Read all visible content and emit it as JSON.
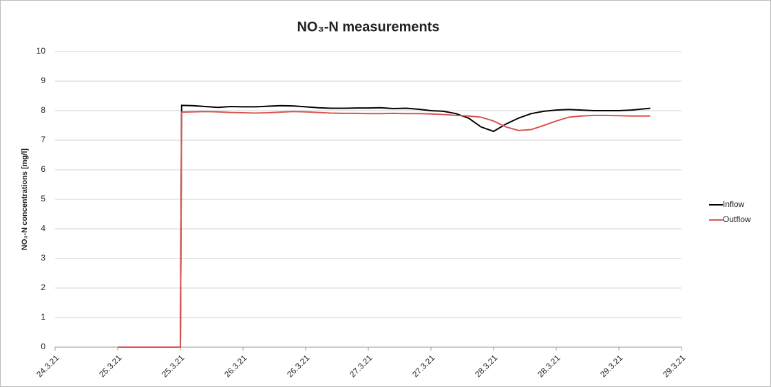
{
  "chart_data": {
    "type": "line",
    "title": "NO₃-N measurements",
    "y_label": "NO₃-N concentrations [mg/l]",
    "x": [
      25.0,
      25.5,
      25.51,
      25.6,
      25.7,
      25.8,
      25.9,
      26.0,
      26.1,
      26.2,
      26.3,
      26.4,
      26.5,
      26.6,
      26.7,
      26.8,
      26.9,
      27.0,
      27.1,
      27.2,
      27.3,
      27.4,
      27.5,
      27.6,
      27.7,
      27.8,
      27.9,
      28.0,
      28.1,
      28.2,
      28.3,
      28.4,
      28.5,
      28.6,
      28.7,
      28.8,
      28.9,
      29.0,
      29.1,
      29.2,
      29.25
    ],
    "series": [
      {
        "name": "Inflow",
        "color": "#000000",
        "values": [
          null,
          0,
          8.18,
          8.17,
          8.14,
          8.11,
          8.14,
          8.13,
          8.13,
          8.15,
          8.17,
          8.16,
          8.13,
          8.1,
          8.08,
          8.08,
          8.09,
          8.09,
          8.1,
          8.07,
          8.08,
          8.05,
          8.0,
          7.98,
          7.9,
          7.75,
          7.45,
          7.3,
          7.55,
          7.75,
          7.9,
          7.98,
          8.02,
          8.04,
          8.02,
          8.0,
          8.0,
          8.0,
          8.02,
          8.06,
          8.08
        ]
      },
      {
        "name": "Outflow",
        "color": "#d9534f",
        "values": [
          0,
          0,
          7.95,
          7.96,
          7.97,
          7.96,
          7.94,
          7.93,
          7.92,
          7.93,
          7.95,
          7.97,
          7.96,
          7.94,
          7.92,
          7.91,
          7.91,
          7.9,
          7.9,
          7.91,
          7.9,
          7.9,
          7.89,
          7.87,
          7.84,
          7.82,
          7.78,
          7.65,
          7.45,
          7.33,
          7.36,
          7.5,
          7.65,
          7.78,
          7.82,
          7.84,
          7.84,
          7.83,
          7.82,
          7.82,
          7.82
        ]
      }
    ],
    "xlim": [
      24.5,
      29.5
    ],
    "xticks": [
      {
        "value": 24.5,
        "label": "24.3.21"
      },
      {
        "value": 25,
        "label": "25.3.21"
      },
      {
        "value": 25.5,
        "label": "25.3.21"
      },
      {
        "value": 26,
        "label": "26.3.21"
      },
      {
        "value": 26.5,
        "label": "26.3.21"
      },
      {
        "value": 27,
        "label": "27.3.21"
      },
      {
        "value": 27.5,
        "label": "27.3.21"
      },
      {
        "value": 28,
        "label": "28.3.21"
      },
      {
        "value": 28.5,
        "label": "28.3.21"
      },
      {
        "value": 29,
        "label": "29.3.21"
      },
      {
        "value": 29.5,
        "label": "29.3.21"
      }
    ],
    "ylim": [
      0,
      10
    ],
    "yticks": [
      0,
      1,
      2,
      3,
      4,
      5,
      6,
      7,
      8,
      9,
      10
    ],
    "grid": true,
    "legend": "right"
  }
}
